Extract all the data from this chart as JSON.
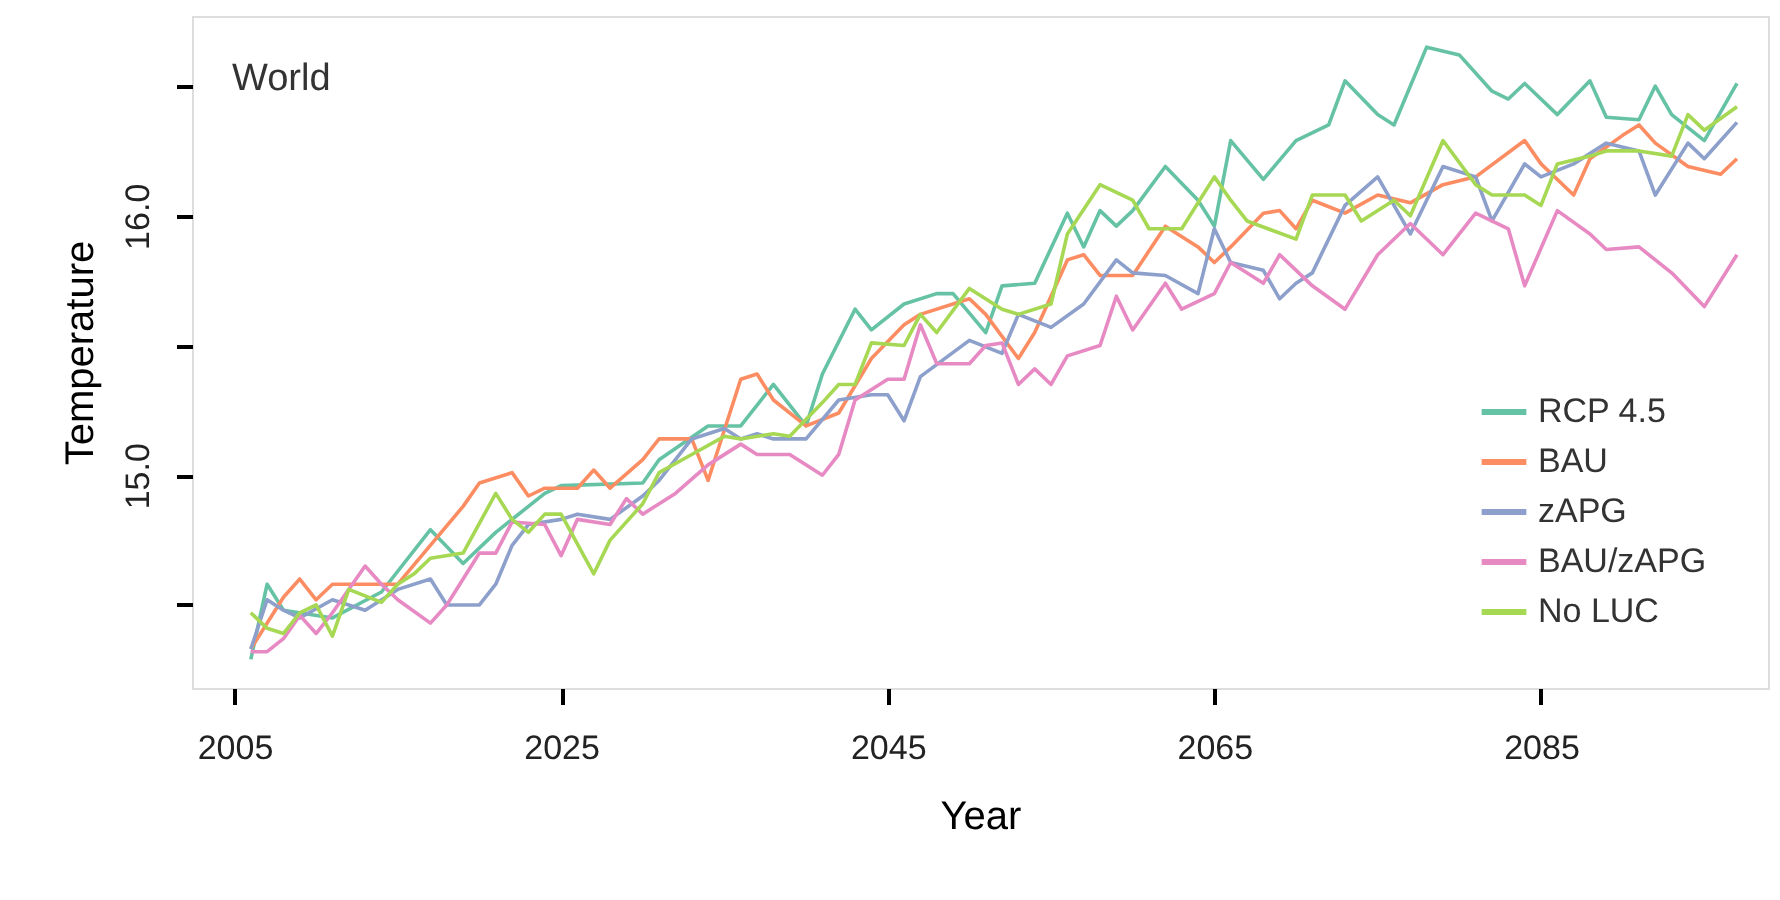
{
  "chart_data": {
    "type": "line",
    "xlabel": "Year",
    "ylabel": "Temperature",
    "annotations": [
      "World"
    ],
    "xlim": [
      2002.4,
      2098.9
    ],
    "xticks": [
      2005,
      2025,
      2045,
      2065,
      2085
    ],
    "ylim": [
      14.18,
      16.77
    ],
    "yticks": [
      {
        "value": 14.5,
        "label": null
      },
      {
        "value": 15.0,
        "label": "15.0"
      },
      {
        "value": 15.5,
        "label": null
      },
      {
        "value": 16.0,
        "label": "16.0"
      },
      {
        "value": 16.5,
        "label": null
      }
    ],
    "grid": false,
    "legend": "bottom right",
    "marker": "none",
    "line_style": "solid",
    "series": [
      {
        "name": "RCP 4.5",
        "color": "#66c2a5",
        "x": [
          2006,
          2007,
          2008,
          2011,
          2014,
          2017,
          2019,
          2021,
          2024,
          2025,
          2030,
          2031,
          2034,
          2036,
          2038,
          2040,
          2041,
          2043,
          2044,
          2046,
          2048,
          2049,
          2051,
          2052,
          2054,
          2056,
          2057,
          2058,
          2059,
          2060,
          2062,
          2064,
          2065,
          2066,
          2068,
          2070,
          2072,
          2073,
          2075,
          2076,
          2078,
          2080,
          2082,
          2083,
          2084,
          2086,
          2088,
          2089,
          2091,
          2092,
          2093,
          2095,
          2097
        ],
        "values": [
          14.29,
          14.58,
          14.48,
          14.45,
          14.55,
          14.79,
          14.66,
          14.78,
          14.93,
          14.96,
          14.97,
          15.06,
          15.19,
          15.19,
          15.35,
          15.19,
          15.39,
          15.64,
          15.56,
          15.66,
          15.7,
          15.7,
          15.55,
          15.73,
          15.74,
          16.01,
          15.88,
          16.02,
          15.96,
          16.02,
          16.19,
          16.06,
          15.96,
          16.29,
          16.14,
          16.29,
          16.35,
          16.52,
          16.39,
          16.35,
          16.65,
          16.62,
          16.48,
          16.45,
          16.51,
          16.39,
          16.52,
          16.38,
          16.37,
          16.5,
          16.39,
          16.29,
          16.51
        ]
      },
      {
        "name": "BAU",
        "color": "#fc8d62",
        "x": [
          2006,
          2008,
          2009,
          2010,
          2011,
          2013,
          2015,
          2019,
          2020,
          2022,
          2023,
          2024,
          2026,
          2027,
          2028,
          2030,
          2031,
          2033,
          2034,
          2036,
          2037,
          2038,
          2040,
          2042,
          2044,
          2046,
          2047,
          2050,
          2051,
          2053,
          2054,
          2056,
          2057,
          2058,
          2060,
          2062,
          2064,
          2065,
          2066,
          2068,
          2069,
          2070,
          2071,
          2073,
          2075,
          2077,
          2079,
          2081,
          2084,
          2085,
          2087,
          2088,
          2090,
          2091,
          2092,
          2094,
          2096,
          2097
        ],
        "values": [
          14.33,
          14.53,
          14.6,
          14.52,
          14.58,
          14.58,
          14.58,
          14.88,
          14.97,
          15.01,
          14.92,
          14.95,
          14.95,
          15.02,
          14.95,
          15.06,
          15.14,
          15.14,
          14.98,
          15.37,
          15.39,
          15.29,
          15.19,
          15.24,
          15.45,
          15.58,
          15.62,
          15.68,
          15.62,
          15.45,
          15.55,
          15.83,
          15.85,
          15.77,
          15.77,
          15.96,
          15.88,
          15.82,
          15.88,
          16.01,
          16.02,
          15.95,
          16.06,
          16.01,
          16.08,
          16.05,
          16.12,
          16.15,
          16.29,
          16.2,
          16.08,
          16.22,
          16.31,
          16.35,
          16.28,
          16.19,
          16.16,
          16.22
        ]
      },
      {
        "name": "zAPG",
        "color": "#8da0cb",
        "x": [
          2006,
          2007,
          2008,
          2009,
          2011,
          2013,
          2015,
          2017,
          2018,
          2020,
          2021,
          2022,
          2023,
          2025,
          2026,
          2028,
          2030,
          2031,
          2033,
          2035,
          2036,
          2037,
          2038,
          2040,
          2042,
          2044,
          2045,
          2046,
          2047,
          2050,
          2052,
          2053,
          2055,
          2057,
          2059,
          2060,
          2062,
          2064,
          2065,
          2066,
          2068,
          2069,
          2070,
          2071,
          2073,
          2075,
          2077,
          2079,
          2081,
          2082,
          2084,
          2085,
          2087,
          2089,
          2091,
          2092,
          2094,
          2095,
          2097
        ],
        "values": [
          14.33,
          14.52,
          14.48,
          14.45,
          14.52,
          14.48,
          14.56,
          14.6,
          14.5,
          14.5,
          14.58,
          14.73,
          14.81,
          14.83,
          14.85,
          14.83,
          14.92,
          14.98,
          15.14,
          15.18,
          15.14,
          15.16,
          15.14,
          15.14,
          15.29,
          15.31,
          15.31,
          15.21,
          15.38,
          15.52,
          15.47,
          15.62,
          15.57,
          15.66,
          15.83,
          15.78,
          15.77,
          15.7,
          15.95,
          15.82,
          15.79,
          15.68,
          15.74,
          15.78,
          16.04,
          16.15,
          15.93,
          16.19,
          16.15,
          15.98,
          16.2,
          16.15,
          16.2,
          16.28,
          16.25,
          16.08,
          16.28,
          16.22,
          16.36
        ]
      },
      {
        "name": "BAU/zAPG",
        "color": "#e78ac3",
        "x": [
          2006,
          2007,
          2008,
          2009,
          2010,
          2011,
          2013,
          2014,
          2015,
          2017,
          2018,
          2020,
          2021,
          2022,
          2024,
          2025,
          2026,
          2028,
          2029,
          2030,
          2032,
          2034,
          2036,
          2037,
          2039,
          2041,
          2042,
          2043,
          2045,
          2046,
          2047,
          2048,
          2050,
          2051,
          2052,
          2053,
          2054,
          2055,
          2056,
          2058,
          2059,
          2060,
          2062,
          2063,
          2065,
          2066,
          2068,
          2069,
          2071,
          2073,
          2075,
          2077,
          2079,
          2081,
          2083,
          2084,
          2086,
          2088,
          2089,
          2091,
          2093,
          2095,
          2097
        ],
        "values": [
          14.32,
          14.32,
          14.37,
          14.46,
          14.39,
          14.47,
          14.65,
          14.58,
          14.52,
          14.43,
          14.5,
          14.7,
          14.7,
          14.82,
          14.81,
          14.69,
          14.83,
          14.81,
          14.91,
          14.85,
          14.93,
          15.04,
          15.12,
          15.08,
          15.08,
          15.0,
          15.08,
          15.29,
          15.37,
          15.37,
          15.58,
          15.43,
          15.43,
          15.5,
          15.51,
          15.35,
          15.41,
          15.35,
          15.46,
          15.5,
          15.69,
          15.56,
          15.74,
          15.64,
          15.7,
          15.82,
          15.74,
          15.85,
          15.73,
          15.64,
          15.85,
          15.97,
          15.85,
          16.01,
          15.95,
          15.73,
          16.02,
          15.93,
          15.87,
          15.88,
          15.78,
          15.65,
          15.85
        ]
      },
      {
        "name": "No LUC",
        "color": "#a6d854",
        "x": [
          2006,
          2007,
          2008,
          2009,
          2010,
          2011,
          2012,
          2014,
          2015,
          2016,
          2017,
          2019,
          2021,
          2022,
          2023,
          2024,
          2025,
          2027,
          2028,
          2030,
          2031,
          2033,
          2035,
          2036,
          2038,
          2039,
          2041,
          2042,
          2043,
          2044,
          2046,
          2047,
          2048,
          2050,
          2052,
          2053,
          2055,
          2056,
          2058,
          2060,
          2061,
          2063,
          2065,
          2066,
          2067,
          2070,
          2071,
          2073,
          2074,
          2076,
          2077,
          2079,
          2081,
          2082,
          2084,
          2085,
          2086,
          2088,
          2089,
          2091,
          2093,
          2094,
          2095,
          2097
        ],
        "values": [
          14.47,
          14.41,
          14.39,
          14.47,
          14.5,
          14.38,
          14.56,
          14.51,
          14.58,
          14.62,
          14.68,
          14.7,
          14.93,
          14.83,
          14.78,
          14.85,
          14.85,
          14.62,
          14.75,
          14.89,
          15.01,
          15.08,
          15.15,
          15.14,
          15.16,
          15.15,
          15.28,
          15.35,
          15.35,
          15.51,
          15.5,
          15.62,
          15.55,
          15.72,
          15.64,
          15.62,
          15.66,
          15.93,
          16.12,
          16.06,
          15.95,
          15.95,
          16.15,
          16.06,
          15.98,
          15.91,
          16.08,
          16.08,
          15.98,
          16.06,
          16.0,
          16.29,
          16.12,
          16.08,
          16.08,
          16.04,
          16.2,
          16.23,
          16.25,
          16.25,
          16.23,
          16.39,
          16.33,
          16.42
        ]
      }
    ]
  }
}
